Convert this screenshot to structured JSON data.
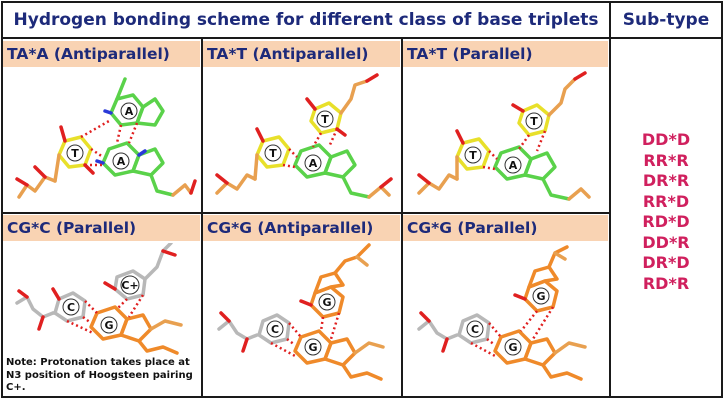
{
  "header": {
    "title": "Hydrogen bonding scheme for different class of base triplets",
    "subtype_heading": "Sub-type"
  },
  "cells": [
    {
      "label": "TA*A (Antiparallel)",
      "bases": [
        "A",
        "T",
        "A"
      ]
    },
    {
      "label": "TA*T (Antiparallel)",
      "bases": [
        "T",
        "T",
        "A"
      ]
    },
    {
      "label": "TA*T (Parallel)",
      "bases": [
        "T",
        "T",
        "A"
      ]
    },
    {
      "label": "CG*C (Parallel)",
      "bases": [
        "C+",
        "C",
        "G"
      ]
    },
    {
      "label": "CG*G (Antiparallel)",
      "bases": [
        "G",
        "C",
        "G"
      ]
    },
    {
      "label": "CG*G (Parallel)",
      "bases": [
        "G",
        "C",
        "G"
      ]
    }
  ],
  "subtypes": [
    "DD*D",
    "RR*R",
    "DR*R",
    "RR*D",
    "RD*D",
    "DD*R",
    "DR*D",
    "RD*R"
  ],
  "note": "Note: Protonation takes place at N3 position of Hoogsteen pairing C+.",
  "colors": {
    "heading_text": "#1d2a7a",
    "label_bg": "#f9d3b3",
    "subtype_text": "#d0205e",
    "thymine": "#e8e02a",
    "adenine": "#5ad24a",
    "cytosine": "#b8b8b8",
    "guanine": "#ef8a2a",
    "backbone": "#e8a050",
    "oxygen": "#e02020",
    "nitrogen": "#2a3ad8",
    "hbond": "#e02020"
  }
}
